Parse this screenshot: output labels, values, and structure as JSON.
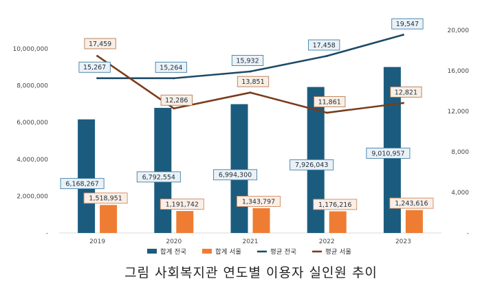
{
  "chart_data": {
    "type": "bar",
    "categories": [
      "2019",
      "2020",
      "2021",
      "2022",
      "2023"
    ],
    "series": [
      {
        "name": "합계 전국",
        "kind": "bar",
        "axis": "left",
        "color": "#1b5c7e",
        "values": [
          6168267,
          6792554,
          6994300,
          7926043,
          9010957
        ],
        "labels": [
          "6,168,267",
          "6,792,554",
          "6,994,300",
          "7,926,043",
          "9,010,957"
        ]
      },
      {
        "name": "합계 서울",
        "kind": "bar",
        "axis": "left",
        "color": "#ee7d33",
        "values": [
          1518951,
          1191742,
          1343797,
          1176216,
          1243616
        ],
        "labels": [
          "1,518,951",
          "1,191,742",
          "1,343,797",
          "1,176,216",
          "1,243,616"
        ]
      },
      {
        "name": "평균 전국",
        "kind": "line",
        "axis": "right",
        "color": "#1d4966",
        "values": [
          15267,
          15264,
          15932,
          17458,
          19547
        ],
        "labels": [
          "15,267",
          "15,264",
          "15,932",
          "17,458",
          "19,547"
        ]
      },
      {
        "name": "평균 서울",
        "kind": "line",
        "axis": "right",
        "color": "#7a3b1a",
        "values": [
          17459,
          12286,
          13851,
          11861,
          12821
        ],
        "labels": [
          "17,459",
          "12,286",
          "13,851",
          "11,861",
          "12,821"
        ]
      }
    ],
    "y_left": {
      "min": 0,
      "max": 10000000,
      "ticks": [
        {
          "value": 0,
          "label": "-"
        },
        {
          "value": 2000000,
          "label": "2,000,000"
        },
        {
          "value": 4000000,
          "label": "4,000,000"
        },
        {
          "value": 6000000,
          "label": "6,000,000"
        },
        {
          "value": 8000000,
          "label": "8,000,000"
        },
        {
          "value": 10000000,
          "label": "10,000,000"
        }
      ]
    },
    "y_right": {
      "min": 0,
      "max": 20000,
      "ticks": [
        {
          "value": 0,
          "label": "-"
        },
        {
          "value": 4000,
          "label": "4,000"
        },
        {
          "value": 8000,
          "label": "8,000"
        },
        {
          "value": 12000,
          "label": "12,000"
        },
        {
          "value": 16000,
          "label": "16,000"
        },
        {
          "value": 20000,
          "label": "20,000"
        }
      ]
    },
    "legend_position": "bottom",
    "grid": false
  },
  "caption": "그림 사회복지관 연도별 이용자 실인원 추이"
}
